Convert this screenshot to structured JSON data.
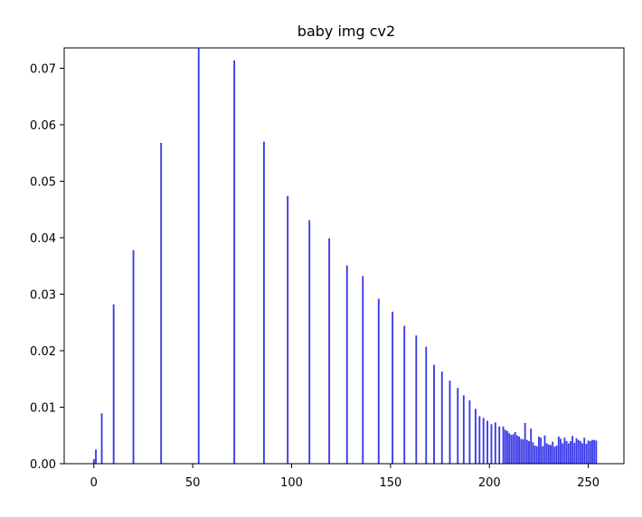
{
  "chart_data": {
    "type": "bar",
    "title": "baby img cv2",
    "xlabel": "",
    "ylabel": "",
    "xlim": [
      -15,
      268
    ],
    "ylim": [
      0,
      0.0736
    ],
    "x_ticks": [
      0,
      50,
      100,
      150,
      200,
      250
    ],
    "y_ticks": [
      0.0,
      0.01,
      0.02,
      0.03,
      0.04,
      0.05,
      0.06,
      0.07
    ],
    "x_tick_labels": [
      "0",
      "50",
      "100",
      "150",
      "200",
      "250"
    ],
    "y_tick_labels": [
      "0.00",
      "0.01",
      "0.02",
      "0.03",
      "0.04",
      "0.05",
      "0.06",
      "0.07"
    ],
    "grid": false,
    "bar_color": "#3a3ae8",
    "series": [
      {
        "x": [
          0,
          1,
          4,
          10,
          20,
          34,
          53,
          71,
          86,
          98,
          109,
          119,
          128,
          136,
          144,
          151,
          157,
          163,
          168,
          172,
          176,
          180,
          184,
          187,
          190,
          193,
          195,
          197,
          199,
          201,
          203,
          205,
          207,
          208,
          209,
          210,
          211,
          212,
          213,
          214,
          215,
          216,
          217,
          218,
          219,
          220,
          221,
          222,
          223,
          224,
          225,
          226,
          227,
          228,
          229,
          230,
          231,
          232,
          233,
          234,
          235,
          236,
          237,
          238,
          239,
          240,
          241,
          242,
          243,
          244,
          245,
          246,
          247,
          248,
          249,
          250,
          251,
          252,
          253,
          254
        ],
        "values": [
          0.0008,
          0.0025,
          0.0089,
          0.0282,
          0.0378,
          0.0568,
          0.0735,
          0.0714,
          0.057,
          0.0474,
          0.0431,
          0.0399,
          0.0351,
          0.0332,
          0.0292,
          0.0269,
          0.0244,
          0.0227,
          0.0207,
          0.0175,
          0.0163,
          0.0147,
          0.0134,
          0.0121,
          0.0112,
          0.0097,
          0.0084,
          0.0081,
          0.0076,
          0.007,
          0.0073,
          0.0066,
          0.0066,
          0.006,
          0.0058,
          0.0054,
          0.0051,
          0.0052,
          0.0056,
          0.005,
          0.0048,
          0.0044,
          0.0043,
          0.0072,
          0.0042,
          0.004,
          0.0062,
          0.0038,
          0.0032,
          0.0031,
          0.0048,
          0.0046,
          0.0031,
          0.005,
          0.0036,
          0.0034,
          0.0033,
          0.0039,
          0.003,
          0.0032,
          0.0048,
          0.0044,
          0.0036,
          0.0046,
          0.004,
          0.0036,
          0.004,
          0.0049,
          0.0037,
          0.0045,
          0.0042,
          0.004,
          0.0036,
          0.0046,
          0.0035,
          0.0041,
          0.004,
          0.0042,
          0.0042,
          0.0041
        ]
      }
    ]
  }
}
